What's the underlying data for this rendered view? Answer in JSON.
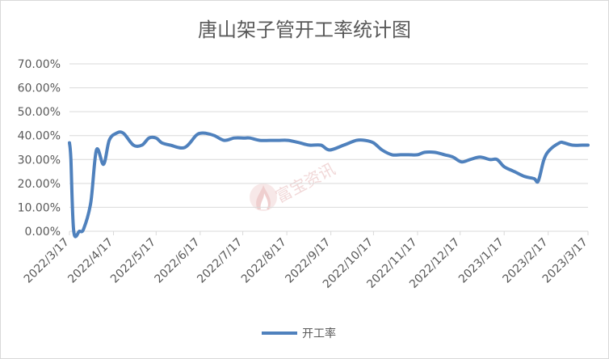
{
  "chart_data": {
    "type": "line",
    "title": "唐山架子管开工率统计图",
    "xlabel": "",
    "ylabel": "",
    "ylim": [
      0,
      70
    ],
    "y_ticks": [
      "0.00%",
      "10.00%",
      "20.00%",
      "30.00%",
      "40.00%",
      "50.00%",
      "60.00%",
      "70.00%"
    ],
    "x_ticks": [
      "2022/3/17",
      "2022/4/17",
      "2022/5/17",
      "2022/6/17",
      "2022/7/17",
      "2022/8/17",
      "2022/9/17",
      "2022/10/17",
      "2022/11/17",
      "2022/12/17",
      "2023/1/17",
      "2023/2/17",
      "2023/3/17"
    ],
    "grid": true,
    "legend_position": "bottom",
    "series": [
      {
        "name": "开工率",
        "color": "#4f81bd",
        "x": [
          "2022/3/17",
          "2022/3/18",
          "2022/3/20",
          "2022/3/24",
          "2022/3/27",
          "2022/4/1",
          "2022/4/5",
          "2022/4/10",
          "2022/4/14",
          "2022/4/19",
          "2022/4/24",
          "2022/5/1",
          "2022/5/7",
          "2022/5/12",
          "2022/5/17",
          "2022/5/21",
          "2022/5/27",
          "2022/6/6",
          "2022/6/14",
          "2022/6/17",
          "2022/6/21",
          "2022/6/27",
          "2022/7/4",
          "2022/7/11",
          "2022/7/18",
          "2022/7/22",
          "2022/7/29",
          "2022/8/5",
          "2022/8/11",
          "2022/8/18",
          "2022/8/26",
          "2022/9/2",
          "2022/9/10",
          "2022/9/16",
          "2022/9/26",
          "2022/10/5",
          "2022/10/11",
          "2022/10/17",
          "2022/10/23",
          "2022/10/30",
          "2022/11/5",
          "2022/11/11",
          "2022/11/17",
          "2022/11/22",
          "2022/11/29",
          "2022/12/6",
          "2022/12/12",
          "2022/12/18",
          "2022/12/24",
          "2022/12/31",
          "2023/1/7",
          "2023/1/12",
          "2023/1/17",
          "2023/1/24",
          "2023/1/31",
          "2023/2/7",
          "2023/2/10",
          "2023/2/14",
          "2023/2/18",
          "2023/2/25",
          "2023/2/28",
          "2023/3/6",
          "2023/3/13",
          "2023/3/17"
        ],
        "values": [
          37,
          30,
          0,
          0,
          1,
          12,
          34,
          28,
          38,
          41,
          41,
          36,
          36,
          39,
          39,
          37,
          36,
          35,
          40,
          41,
          41,
          40,
          38,
          39,
          39,
          39,
          38,
          38,
          38,
          38,
          37,
          36,
          36,
          34,
          36,
          38,
          38,
          37,
          34,
          32,
          32,
          32,
          32,
          33,
          33,
          32,
          31,
          29,
          30,
          31,
          30,
          30,
          27,
          25,
          23,
          22,
          21,
          30,
          34,
          37,
          37,
          36,
          36,
          36
        ]
      }
    ],
    "watermark": "富宝资讯"
  }
}
